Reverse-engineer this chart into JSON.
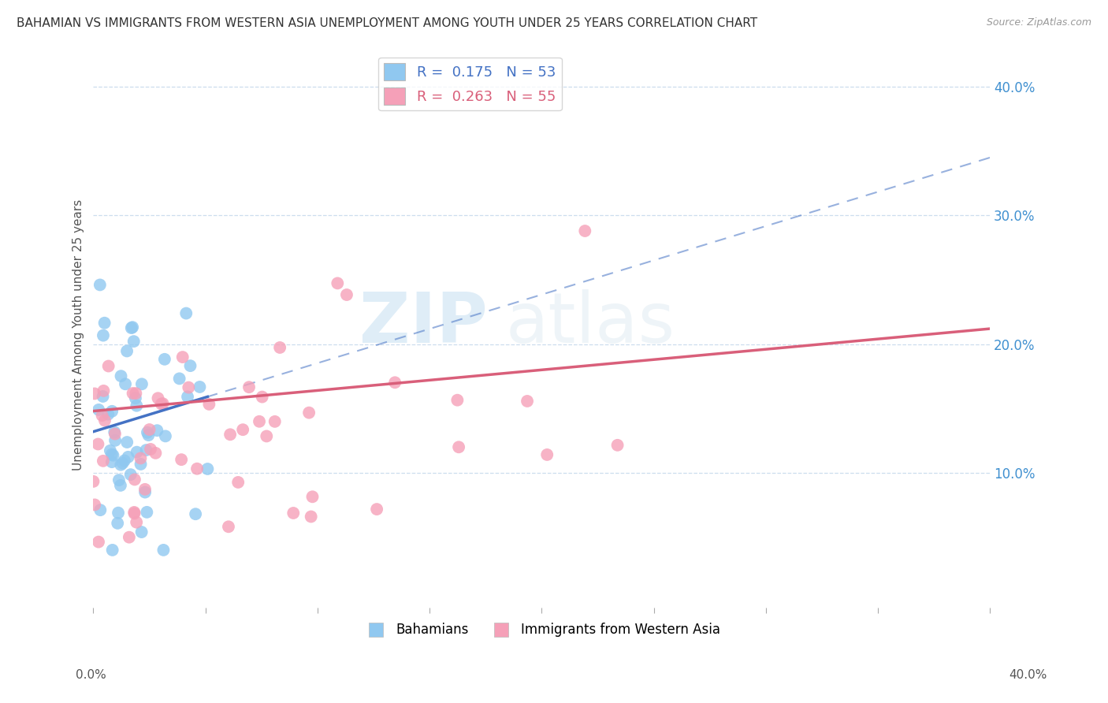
{
  "title": "BAHAMIAN VS IMMIGRANTS FROM WESTERN ASIA UNEMPLOYMENT AMONG YOUTH UNDER 25 YEARS CORRELATION CHART",
  "source": "Source: ZipAtlas.com",
  "ylabel": "Unemployment Among Youth under 25 years",
  "xlim": [
    0.0,
    0.4
  ],
  "ylim": [
    -0.005,
    0.42
  ],
  "R_blue": 0.175,
  "N_blue": 53,
  "R_pink": 0.263,
  "N_pink": 55,
  "blue_color": "#90C8F0",
  "pink_color": "#F5A0B8",
  "blue_line_color": "#4472C4",
  "pink_line_color": "#D95F7A",
  "right_axis_color": "#4090D0",
  "legend_label_blue": "Bahamians",
  "legend_label_pink": "Immigrants from Western Asia",
  "ytick_positions": [
    0.1,
    0.2,
    0.3,
    0.4
  ],
  "ytick_labels": [
    "10.0%",
    "20.0%",
    "30.0%",
    "40.0%"
  ],
  "grid_color": "#CCDDEE",
  "watermark_zip": "ZIP",
  "watermark_atlas": "atlas"
}
